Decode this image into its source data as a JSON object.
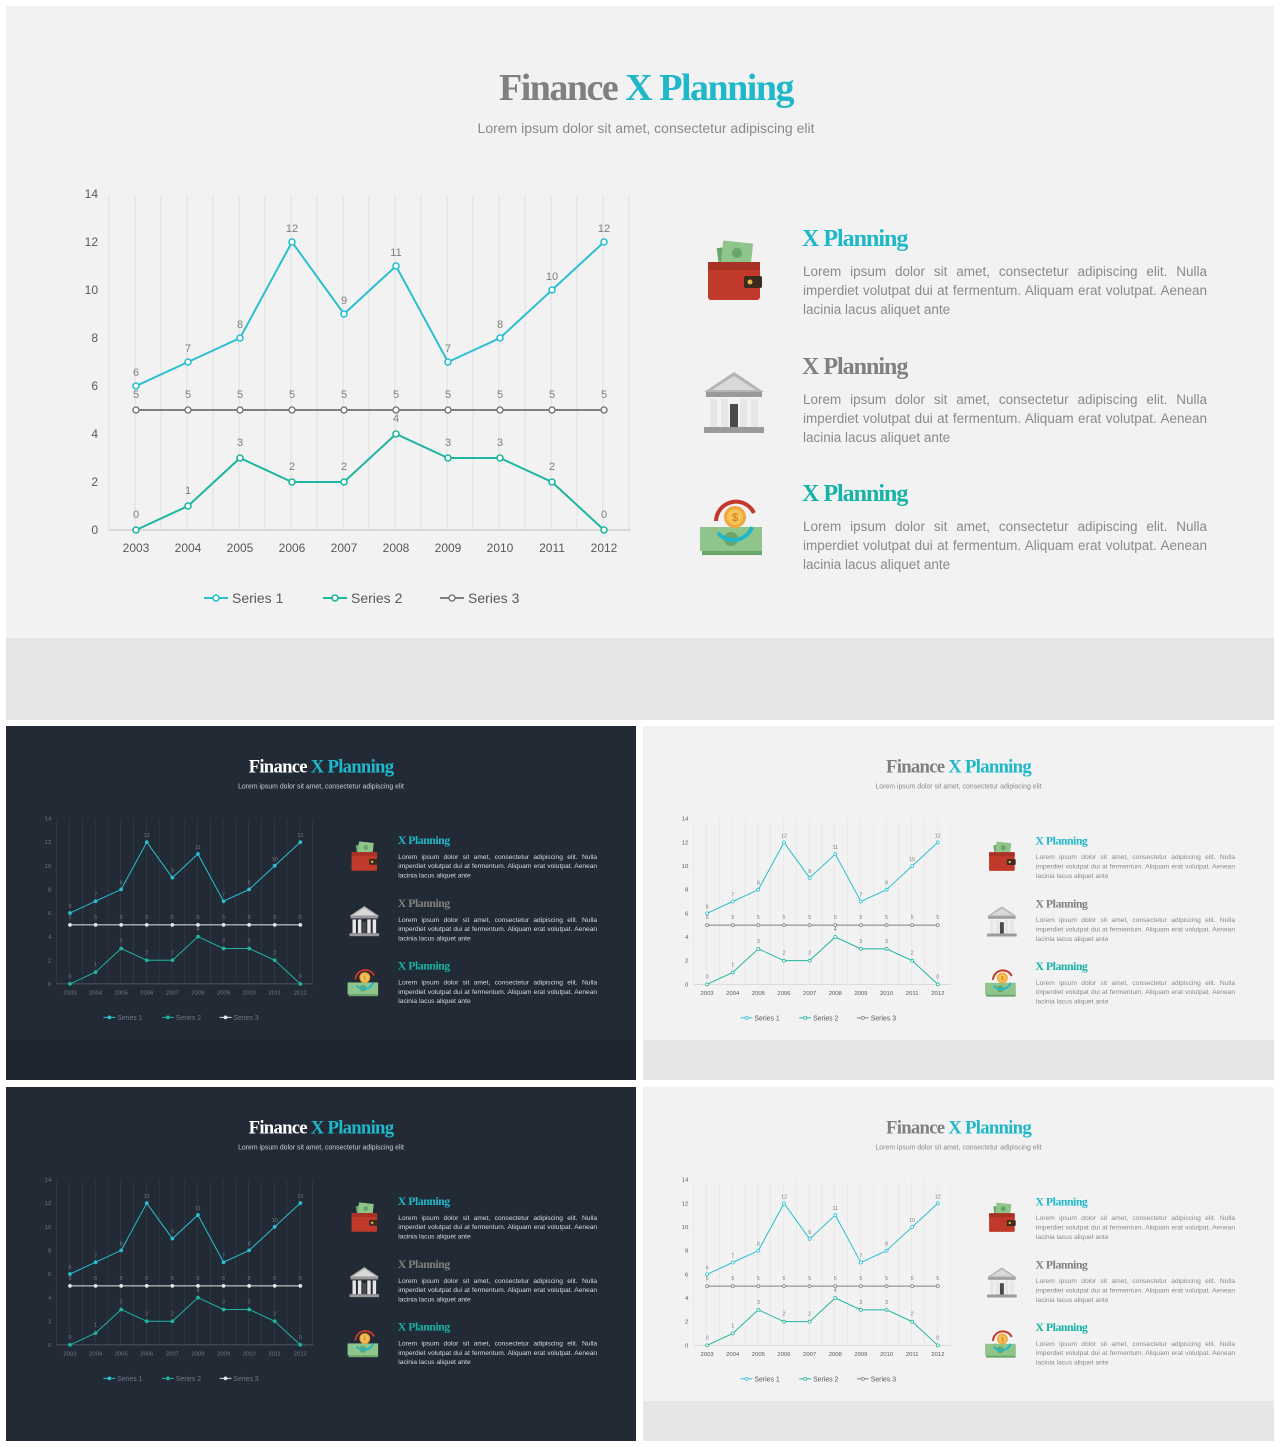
{
  "slide": {
    "title_part1": "Finance",
    "title_part2": "X Planning",
    "subtitle": "Lorem ipsum dolor sit amet, consectetur adipiscing elit"
  },
  "features": [
    {
      "title": "X Planning",
      "text": "Lorem ipsum dolor sit amet, consectetur adipiscing elit. Nulla imperdiet volutpat dui at fermentum. Aliquam erat volutpat. Aenean lacinia lacus aliquet ante",
      "icon": "wallet-icon",
      "title_color": "#1fb8cb"
    },
    {
      "title": "X Planning",
      "text": "Lorem ipsum dolor sit amet, consectetur adipiscing elit. Nulla imperdiet volutpat dui at fermentum. Aliquam erat volutpat. Aenean lacinia lacus aliquet ante",
      "icon": "bank-icon",
      "title_color": "#808080"
    },
    {
      "title": "X Planning",
      "text": "Lorem ipsum dolor sit amet, consectetur adipiscing elit. Nulla imperdiet volutpat dui at fermentum. Aliquam erat volutpat. Aenean lacinia lacus aliquet ante",
      "icon": "money-exchange-icon",
      "title_color": "#17b3a6"
    }
  ],
  "colors": {
    "series1": "#2bbfd1",
    "series2": "#1fb59f",
    "series3": "#7f7f7f",
    "series3_dark": "#e6e6e6"
  },
  "chart_data": {
    "type": "line",
    "x": [
      "2003",
      "2004",
      "2005",
      "2006",
      "2007",
      "2008",
      "2009",
      "2010",
      "2011",
      "2012"
    ],
    "series": [
      {
        "name": "Series 1",
        "values": [
          6,
          7,
          8,
          12,
          9,
          11,
          7,
          8,
          10,
          12
        ]
      },
      {
        "name": "Series 2",
        "values": [
          0,
          1,
          3,
          2,
          2,
          4,
          3,
          3,
          2,
          0
        ]
      },
      {
        "name": "Series 3",
        "values": [
          5,
          5,
          5,
          5,
          5,
          5,
          5,
          5,
          5,
          5
        ]
      }
    ],
    "ylim": [
      0,
      14
    ],
    "yticks": [
      0,
      2,
      4,
      6,
      8,
      10,
      12,
      14
    ],
    "grid": "vertical",
    "legend": "bottom",
    "data_labels": true
  },
  "slides": [
    {
      "id": "main",
      "theme": "light"
    },
    {
      "id": "thumb-1",
      "theme": "dark"
    },
    {
      "id": "thumb-2",
      "theme": "light"
    },
    {
      "id": "thumb-3",
      "theme": "dark"
    },
    {
      "id": "thumb-4",
      "theme": "light"
    }
  ]
}
